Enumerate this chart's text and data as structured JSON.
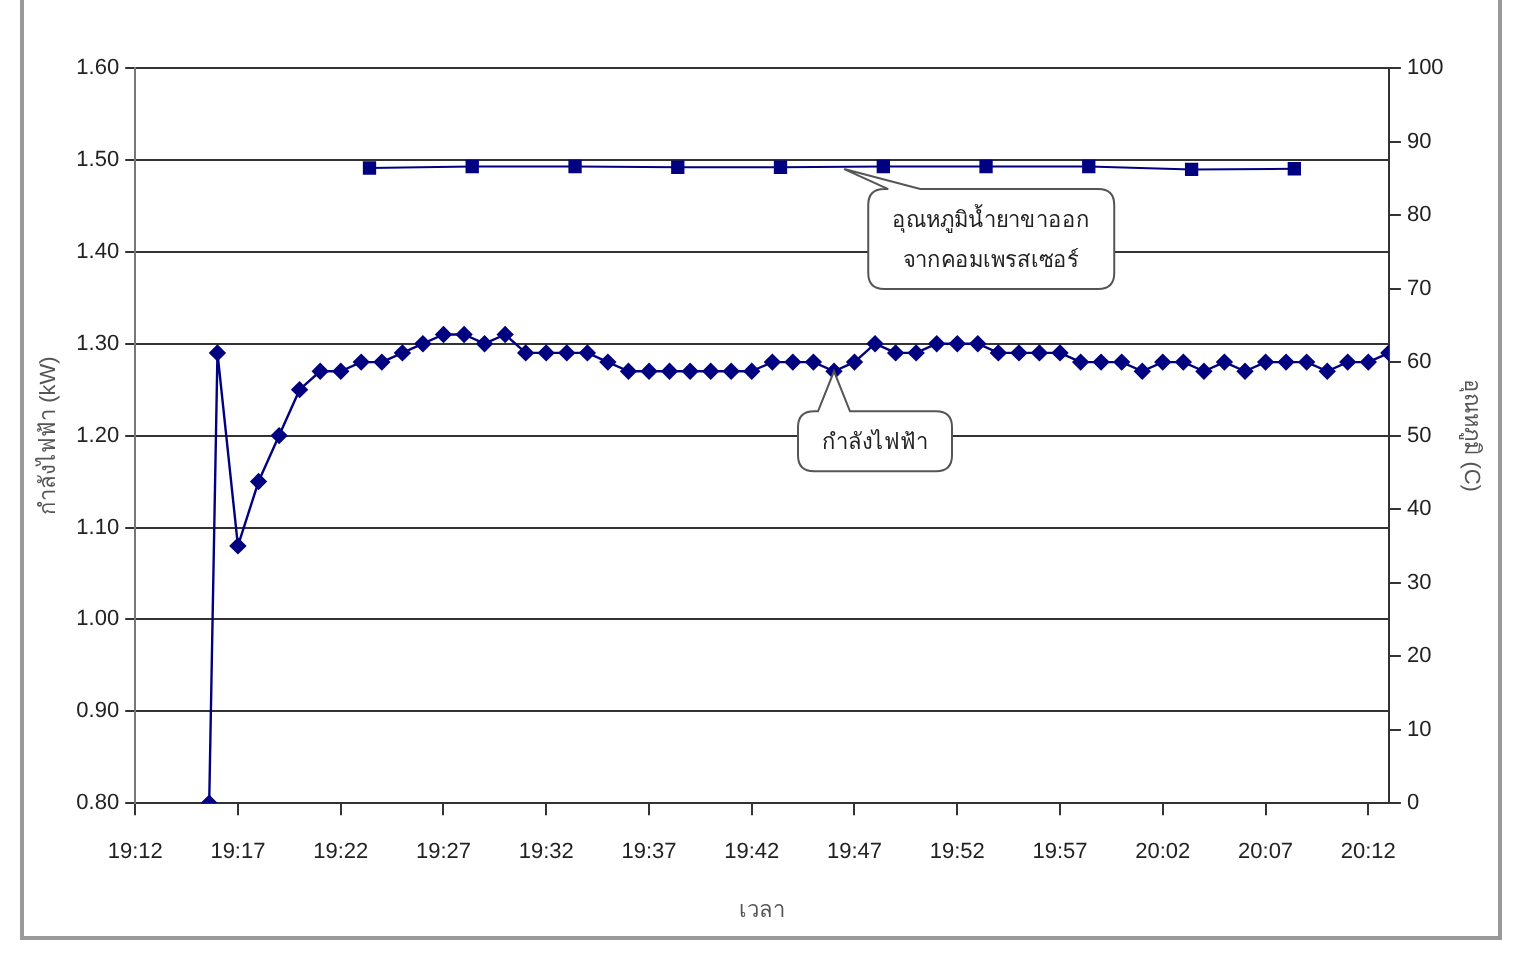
{
  "chart_data": {
    "type": "line",
    "xlabel": "เวลา",
    "ylabel": "กำลังไฟฟ้า (kW)",
    "y2label": "อุณหภูมิ (C)",
    "xlim": [
      19.2,
      20.2167
    ],
    "xticks": [
      {
        "value": 19.2,
        "label": "19:12"
      },
      {
        "value": 19.2833,
        "label": "19:17"
      },
      {
        "value": 19.3667,
        "label": "19:22"
      },
      {
        "value": 19.45,
        "label": "19:27"
      },
      {
        "value": 19.5333,
        "label": "19:32"
      },
      {
        "value": 19.6167,
        "label": "19:37"
      },
      {
        "value": 19.7,
        "label": "19:42"
      },
      {
        "value": 19.7833,
        "label": "19:47"
      },
      {
        "value": 19.8667,
        "label": "19:52"
      },
      {
        "value": 19.95,
        "label": "19:57"
      },
      {
        "value": 20.0333,
        "label": "20:02"
      },
      {
        "value": 20.1167,
        "label": "20:07"
      },
      {
        "value": 20.2,
        "label": "20:12"
      }
    ],
    "ylim": [
      0.8,
      1.6
    ],
    "yticks": [
      {
        "value": 0.8,
        "label": "0.80"
      },
      {
        "value": 0.9,
        "label": "0.90"
      },
      {
        "value": 1.0,
        "label": "1.00"
      },
      {
        "value": 1.1,
        "label": "1.10"
      },
      {
        "value": 1.2,
        "label": "1.20"
      },
      {
        "value": 1.3,
        "label": "1.30"
      },
      {
        "value": 1.4,
        "label": "1.40"
      },
      {
        "value": 1.5,
        "label": "1.50"
      },
      {
        "value": 1.6,
        "label": "1.60"
      }
    ],
    "y2lim": [
      0,
      100
    ],
    "y2ticks": [
      0,
      10,
      20,
      30,
      40,
      50,
      60,
      70,
      80,
      90,
      100
    ],
    "grid": "y",
    "legend": false,
    "line_style": "solid",
    "series": [
      {
        "color": "#000080",
        "marker": "diamond",
        "x": [
          19.26,
          19.2667,
          19.2833,
          19.3,
          19.3167,
          19.3333,
          19.35,
          19.3667,
          19.3833,
          19.4,
          19.4167,
          19.4333,
          19.45,
          19.4667,
          19.4833,
          19.5,
          19.5167,
          19.5333,
          19.55,
          19.5667,
          19.5833,
          19.6,
          19.6167,
          19.6333,
          19.65,
          19.6667,
          19.6833,
          19.7,
          19.7167,
          19.7333,
          19.75,
          19.7667,
          19.7833,
          19.8,
          19.8167,
          19.8333,
          19.85,
          19.8667,
          19.8833,
          19.9,
          19.9167,
          19.9333,
          19.95,
          19.9667,
          19.9833,
          20,
          20.0167,
          20.0333,
          20.05,
          20.0667,
          20.0833,
          20.1,
          20.1167,
          20.1333,
          20.15,
          20.1667,
          20.1833,
          20.2,
          20.2167
        ],
        "values": [
          0.8,
          1.29,
          1.08,
          1.15,
          1.2,
          1.25,
          1.27,
          1.27,
          1.28,
          1.28,
          1.29,
          1.3,
          1.31,
          1.31,
          1.3,
          1.31,
          1.29,
          1.29,
          1.29,
          1.29,
          1.28,
          1.27,
          1.27,
          1.27,
          1.27,
          1.27,
          1.27,
          1.27,
          1.28,
          1.28,
          1.28,
          1.27,
          1.28,
          1.3,
          1.29,
          1.29,
          1.3,
          1.3,
          1.3,
          1.29,
          1.29,
          1.29,
          1.29,
          1.28,
          1.28,
          1.28,
          1.27,
          1.28,
          1.28,
          1.27,
          1.28,
          1.27,
          1.28,
          1.28,
          1.28,
          1.27,
          1.28,
          1.28,
          1.29
        ]
      },
      {
        "color": "#000080",
        "marker": "square",
        "axis": "y2",
        "x": [
          19.39,
          19.4733,
          19.5567,
          19.64,
          19.7233,
          19.8067,
          19.89,
          19.9733,
          20.0567,
          20.14
        ],
        "values": [
          86.4,
          86.6,
          86.6,
          86.5,
          86.5,
          86.6,
          86.6,
          86.6,
          86.2,
          86.3
        ]
      }
    ],
    "annotations": [
      {
        "text": "อุณหภูมิน้ำยาขาออก\nจากคอมเพรสเซอร์",
        "x": 19.775,
        "y": 1.49
      },
      {
        "text": "กำลังไฟฟ้า",
        "x": 19.7667,
        "y": 1.27
      }
    ]
  }
}
